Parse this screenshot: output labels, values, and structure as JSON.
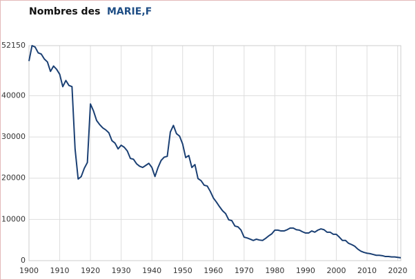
{
  "chart_data": {
    "type": "line",
    "title": "Nombres des",
    "x": [
      1900,
      1901,
      1902,
      1903,
      1904,
      1905,
      1906,
      1907,
      1908,
      1909,
      1910,
      1911,
      1912,
      1913,
      1914,
      1915,
      1916,
      1917,
      1918,
      1919,
      1920,
      1921,
      1922,
      1923,
      1924,
      1925,
      1926,
      1927,
      1928,
      1929,
      1930,
      1931,
      1932,
      1933,
      1934,
      1935,
      1936,
      1937,
      1938,
      1939,
      1940,
      1941,
      1942,
      1943,
      1944,
      1945,
      1946,
      1947,
      1948,
      1949,
      1950,
      1951,
      1952,
      1953,
      1954,
      1955,
      1956,
      1957,
      1958,
      1959,
      1960,
      1961,
      1962,
      1963,
      1964,
      1965,
      1966,
      1967,
      1968,
      1969,
      1970,
      1971,
      1972,
      1973,
      1974,
      1975,
      1976,
      1977,
      1978,
      1979,
      1980,
      1981,
      1982,
      1983,
      1984,
      1985,
      1986,
      1987,
      1988,
      1989,
      1990,
      1991,
      1992,
      1993,
      1994,
      1995,
      1996,
      1997,
      1998,
      1999,
      2000,
      2001,
      2002,
      2003,
      2004,
      2005,
      2006,
      2007,
      2008,
      2009,
      2010,
      2011,
      2012,
      2013,
      2014,
      2015,
      2016,
      2017,
      2018,
      2019,
      2020,
      2021
    ],
    "series": [
      {
        "name": "MARIE,F",
        "color": "#1a3f73",
        "values": [
          48400,
          52150,
          51800,
          50400,
          50100,
          48900,
          48200,
          45900,
          47200,
          46400,
          45200,
          42200,
          43700,
          42500,
          42200,
          27100,
          19800,
          20400,
          22400,
          23800,
          38000,
          36300,
          34000,
          33000,
          32200,
          31700,
          31000,
          29100,
          28500,
          27100,
          28000,
          27500,
          26600,
          24800,
          24600,
          23500,
          22900,
          22600,
          23100,
          23600,
          22600,
          20400,
          22600,
          24300,
          25100,
          25300,
          31200,
          32800,
          30800,
          30200,
          28300,
          25000,
          25500,
          22600,
          23300,
          19900,
          19400,
          18300,
          18100,
          16800,
          15200,
          14200,
          13100,
          12100,
          11400,
          9900,
          9700,
          8400,
          8200,
          7400,
          5700,
          5500,
          5200,
          4900,
          5200,
          5000,
          4900,
          5400,
          6000,
          6500,
          7400,
          7400,
          7200,
          7200,
          7500,
          7900,
          7900,
          7500,
          7400,
          7000,
          6700,
          6700,
          7200,
          6900,
          7400,
          7700,
          7500,
          6900,
          6900,
          6400,
          6400,
          5700,
          4900,
          4900,
          4200,
          3900,
          3500,
          2800,
          2300,
          2000,
          1800,
          1700,
          1500,
          1300,
          1300,
          1200,
          1000,
          1000,
          900,
          900,
          800,
          700
        ]
      }
    ],
    "xlim": [
      1900,
      2021
    ],
    "xticks": [
      1900,
      1910,
      1920,
      1930,
      1940,
      1950,
      1960,
      1970,
      1980,
      1990,
      2000,
      2010,
      2020
    ],
    "ylim": [
      0,
      52150
    ],
    "yticks": [
      0,
      10000,
      20000,
      30000,
      40000,
      52150
    ],
    "grid": true
  }
}
